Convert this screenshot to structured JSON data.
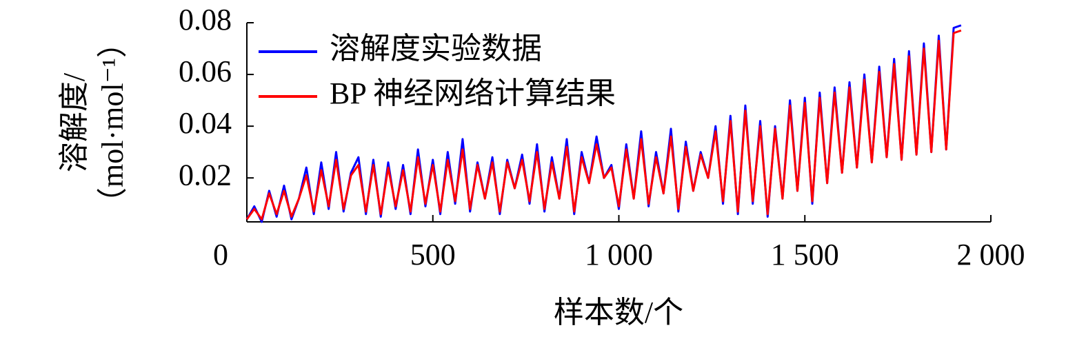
{
  "chart_data": {
    "type": "line",
    "xlabel": "样本数/个",
    "ylabel": [
      "溶解度/",
      "（mol·mol⁻¹）"
    ],
    "x": [
      0,
      20,
      40,
      60,
      80,
      100,
      120,
      140,
      160,
      180,
      200,
      220,
      240,
      260,
      280,
      300,
      320,
      340,
      360,
      380,
      400,
      420,
      440,
      460,
      480,
      500,
      520,
      540,
      560,
      580,
      600,
      620,
      640,
      660,
      680,
      700,
      720,
      740,
      760,
      780,
      800,
      820,
      840,
      860,
      880,
      900,
      920,
      940,
      960,
      980,
      1000,
      1020,
      1040,
      1060,
      1080,
      1100,
      1120,
      1140,
      1160,
      1180,
      1200,
      1220,
      1240,
      1260,
      1280,
      1300,
      1320,
      1340,
      1360,
      1380,
      1400,
      1420,
      1440,
      1460,
      1480,
      1500,
      1520,
      1540,
      1560,
      1580,
      1600,
      1620,
      1640,
      1660,
      1680,
      1700,
      1720,
      1740,
      1760,
      1780,
      1800,
      1820,
      1840,
      1860,
      1880,
      1900,
      1920
    ],
    "series": [
      {
        "name": "溶解度实验数据",
        "color": "#0000ff",
        "values": [
          0.004,
          0.009,
          0.003,
          0.015,
          0.005,
          0.017,
          0.004,
          0.012,
          0.024,
          0.006,
          0.026,
          0.008,
          0.03,
          0.007,
          0.022,
          0.028,
          0.006,
          0.027,
          0.005,
          0.026,
          0.008,
          0.025,
          0.006,
          0.031,
          0.009,
          0.027,
          0.006,
          0.03,
          0.01,
          0.035,
          0.007,
          0.026,
          0.012,
          0.028,
          0.006,
          0.027,
          0.016,
          0.029,
          0.01,
          0.033,
          0.007,
          0.028,
          0.012,
          0.035,
          0.006,
          0.03,
          0.018,
          0.036,
          0.02,
          0.025,
          0.008,
          0.033,
          0.012,
          0.038,
          0.009,
          0.03,
          0.014,
          0.039,
          0.007,
          0.034,
          0.015,
          0.03,
          0.02,
          0.04,
          0.01,
          0.044,
          0.006,
          0.048,
          0.01,
          0.042,
          0.005,
          0.04,
          0.012,
          0.05,
          0.015,
          0.051,
          0.01,
          0.053,
          0.018,
          0.055,
          0.022,
          0.057,
          0.024,
          0.06,
          0.026,
          0.063,
          0.028,
          0.066,
          0.027,
          0.069,
          0.029,
          0.072,
          0.03,
          0.075,
          0.031,
          0.078,
          0.079
        ]
      },
      {
        "name": "BP 神经网络计算结果",
        "color": "#ff0000",
        "values": [
          0.004,
          0.008,
          0.004,
          0.014,
          0.006,
          0.015,
          0.005,
          0.012,
          0.021,
          0.007,
          0.023,
          0.009,
          0.027,
          0.008,
          0.021,
          0.025,
          0.007,
          0.025,
          0.006,
          0.024,
          0.009,
          0.023,
          0.007,
          0.028,
          0.01,
          0.025,
          0.007,
          0.027,
          0.011,
          0.031,
          0.008,
          0.025,
          0.012,
          0.026,
          0.007,
          0.026,
          0.016,
          0.027,
          0.011,
          0.03,
          0.008,
          0.026,
          0.012,
          0.032,
          0.007,
          0.028,
          0.018,
          0.033,
          0.02,
          0.024,
          0.009,
          0.031,
          0.012,
          0.035,
          0.01,
          0.028,
          0.014,
          0.036,
          0.008,
          0.032,
          0.015,
          0.029,
          0.02,
          0.038,
          0.011,
          0.042,
          0.007,
          0.046,
          0.011,
          0.04,
          0.006,
          0.039,
          0.012,
          0.048,
          0.015,
          0.049,
          0.011,
          0.051,
          0.018,
          0.053,
          0.022,
          0.055,
          0.024,
          0.058,
          0.026,
          0.061,
          0.028,
          0.064,
          0.027,
          0.067,
          0.029,
          0.07,
          0.03,
          0.073,
          0.031,
          0.076,
          0.077
        ]
      }
    ],
    "xlim": [
      0,
      2000
    ],
    "xticks": [
      0,
      500,
      {
        "value": 1000,
        "label": "1 000"
      },
      {
        "value": 1500,
        "label": "1 500"
      },
      {
        "value": 2000,
        "label": "2 000"
      }
    ],
    "ylim": [
      0.003,
      0.08
    ],
    "yticks": [
      0.02,
      0.04,
      0.06,
      0.08
    ],
    "legend": "upper left"
  }
}
